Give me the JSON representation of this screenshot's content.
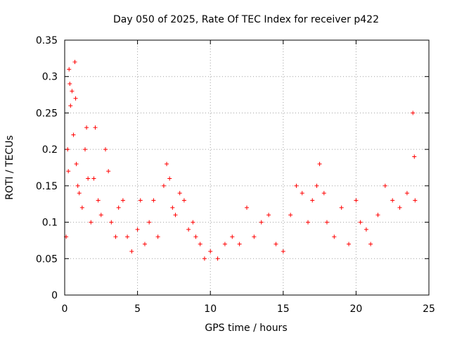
{
  "chart_data": {
    "type": "scatter",
    "title": "Day 050 of 2025, Rate Of TEC Index for receiver p422",
    "xlabel": "GPS time / hours",
    "ylabel": "ROTI / TECUs",
    "xlim": [
      0,
      25
    ],
    "ylim": [
      0,
      0.35
    ],
    "xticks": [
      "0",
      "5",
      "10",
      "15",
      "20",
      "25"
    ],
    "yticks": [
      "0",
      "0.05",
      "0.1",
      "0.15",
      "0.2",
      "0.25",
      "0.3",
      "0.35"
    ],
    "grid": true,
    "marker": "plus",
    "color": "#ff0000",
    "series": [
      {
        "points": [
          [
            0.1,
            0.08
          ],
          [
            0.2,
            0.2
          ],
          [
            0.25,
            0.17
          ],
          [
            0.3,
            0.31
          ],
          [
            0.35,
            0.29
          ],
          [
            0.4,
            0.26
          ],
          [
            0.5,
            0.28
          ],
          [
            0.6,
            0.22
          ],
          [
            0.7,
            0.32
          ],
          [
            0.75,
            0.27
          ],
          [
            0.8,
            0.18
          ],
          [
            0.9,
            0.15
          ],
          [
            1.0,
            0.14
          ],
          [
            1.2,
            0.12
          ],
          [
            1.4,
            0.2
          ],
          [
            1.5,
            0.23
          ],
          [
            1.6,
            0.16
          ],
          [
            1.8,
            0.1
          ],
          [
            2.0,
            0.16
          ],
          [
            2.1,
            0.23
          ],
          [
            2.3,
            0.13
          ],
          [
            2.5,
            0.11
          ],
          [
            2.8,
            0.2
          ],
          [
            3.0,
            0.17
          ],
          [
            3.2,
            0.1
          ],
          [
            3.5,
            0.08
          ],
          [
            3.7,
            0.12
          ],
          [
            4.0,
            0.13
          ],
          [
            4.3,
            0.08
          ],
          [
            4.6,
            0.06
          ],
          [
            5.0,
            0.09
          ],
          [
            5.2,
            0.13
          ],
          [
            5.5,
            0.07
          ],
          [
            5.8,
            0.1
          ],
          [
            6.1,
            0.13
          ],
          [
            6.4,
            0.08
          ],
          [
            6.8,
            0.15
          ],
          [
            7.0,
            0.18
          ],
          [
            7.2,
            0.16
          ],
          [
            7.4,
            0.12
          ],
          [
            7.6,
            0.11
          ],
          [
            7.9,
            0.14
          ],
          [
            8.2,
            0.13
          ],
          [
            8.5,
            0.09
          ],
          [
            8.8,
            0.1
          ],
          [
            9.0,
            0.08
          ],
          [
            9.3,
            0.07
          ],
          [
            9.6,
            0.05
          ],
          [
            10.0,
            0.06
          ],
          [
            10.5,
            0.05
          ],
          [
            11.0,
            0.07
          ],
          [
            11.5,
            0.08
          ],
          [
            12.0,
            0.07
          ],
          [
            12.5,
            0.12
          ],
          [
            13.0,
            0.08
          ],
          [
            13.5,
            0.1
          ],
          [
            14.0,
            0.11
          ],
          [
            14.5,
            0.07
          ],
          [
            15.0,
            0.06
          ],
          [
            15.5,
            0.11
          ],
          [
            15.9,
            0.15
          ],
          [
            16.3,
            0.14
          ],
          [
            16.7,
            0.1
          ],
          [
            17.0,
            0.13
          ],
          [
            17.3,
            0.15
          ],
          [
            17.5,
            0.18
          ],
          [
            17.8,
            0.14
          ],
          [
            18.0,
            0.1
          ],
          [
            18.5,
            0.08
          ],
          [
            19.0,
            0.12
          ],
          [
            19.5,
            0.07
          ],
          [
            20.0,
            0.13
          ],
          [
            20.3,
            0.1
          ],
          [
            20.7,
            0.09
          ],
          [
            21.0,
            0.07
          ],
          [
            21.5,
            0.11
          ],
          [
            22.0,
            0.15
          ],
          [
            22.5,
            0.13
          ],
          [
            23.0,
            0.12
          ],
          [
            23.5,
            0.14
          ],
          [
            23.9,
            0.25
          ],
          [
            24.0,
            0.19
          ],
          [
            24.05,
            0.13
          ]
        ]
      }
    ]
  }
}
